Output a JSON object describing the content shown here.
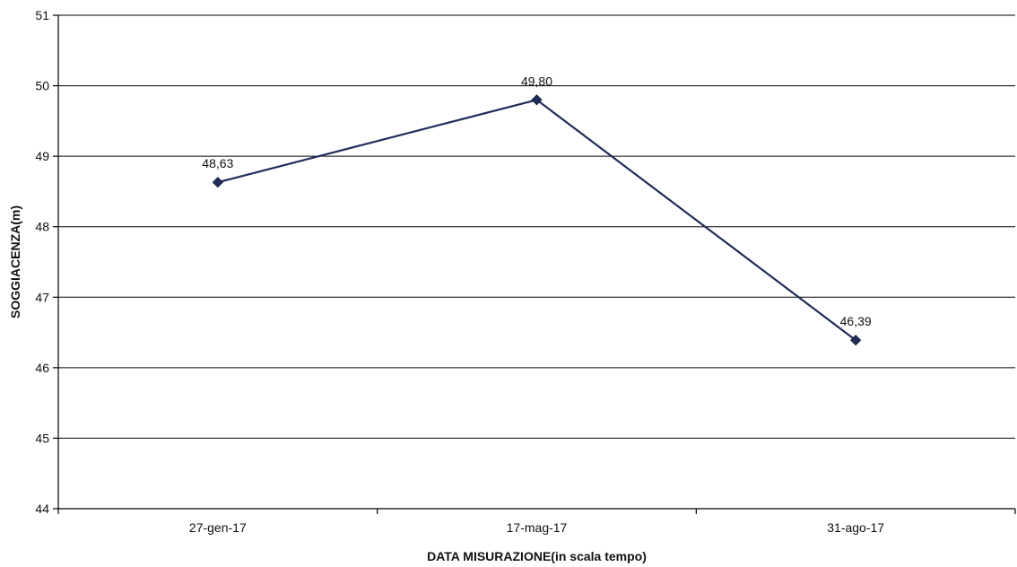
{
  "chart_data": {
    "type": "line",
    "categories": [
      "27-gen-17",
      "17-mag-17",
      "31-ago-17"
    ],
    "series": [
      {
        "values": [
          48.63,
          49.8,
          46.39
        ],
        "data_labels": [
          "48,63",
          "49,80",
          "46,39"
        ],
        "color": "#1f2d5a"
      }
    ],
    "xlabel": "DATA MISURAZIONE(in scala tempo)",
    "ylabel": "SOGGIACENZA(m)",
    "ylim": [
      44,
      51
    ],
    "yticks": [
      44,
      45,
      46,
      47,
      48,
      49,
      50,
      51
    ],
    "grid": true,
    "legend": "none"
  }
}
